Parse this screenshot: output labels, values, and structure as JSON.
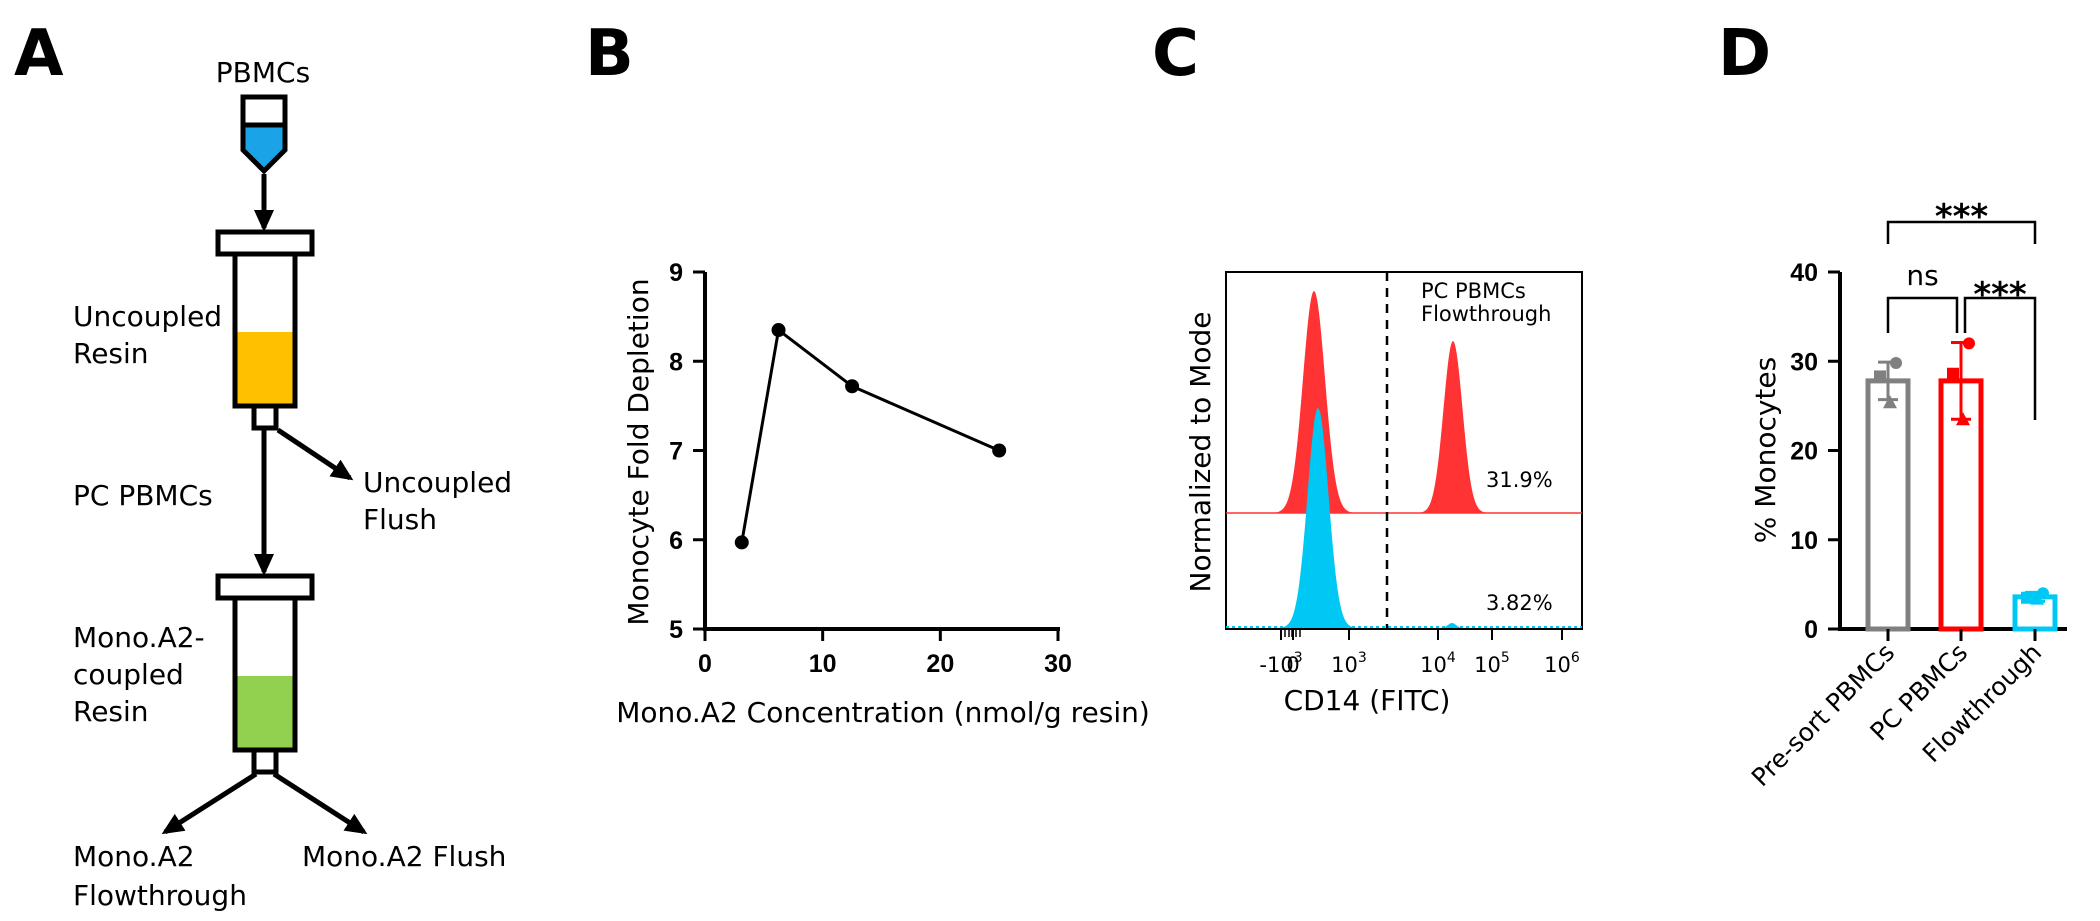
{
  "panel_labels": {
    "a": "A",
    "b": "B",
    "c": "C",
    "d": "D"
  },
  "schematic": {
    "input": "PBMCs",
    "column1_label_1": "Uncoupled",
    "column1_label_2": "Resin",
    "pc_label": "PC PBMCs",
    "flush1_label_1": "Uncoupled",
    "flush1_label_2": "Flush",
    "column2_label_1": "Mono.A2-",
    "column2_label_2": "coupled",
    "column2_label_3": "Resin",
    "out_left_1": "Mono.A2",
    "out_left_2": "Flowthrough",
    "out_right": "Mono.A2 Flush",
    "colors": {
      "tube_fill": "#1ba3e8",
      "resin1": "#ffc000",
      "resin2": "#92d050"
    }
  },
  "chart_data": [
    {
      "type": "line",
      "panel": "B",
      "x": [
        3.125,
        6.25,
        12.5,
        25
      ],
      "y": [
        5.97,
        8.35,
        7.72,
        7.0
      ],
      "xlim": [
        0,
        30
      ],
      "ylim": [
        5,
        9
      ],
      "xticks": [
        "0",
        "10",
        "20",
        "30"
      ],
      "yticks": [
        "5",
        "6",
        "7",
        "8",
        "9"
      ],
      "xlabel": "Mono.A2 Concentration (nmol/g resin)",
      "ylabel": "Monocyte Fold Depletion",
      "color": "#000000"
    },
    {
      "type": "area",
      "panel": "C",
      "xlabel": "CD14 (FITC)",
      "ylabel": "Normalized to Mode",
      "xticks": [
        {
          "base": "-10",
          "exp": "3"
        },
        {
          "base": "0",
          "exp": ""
        },
        {
          "base": "10",
          "exp": "3"
        },
        {
          "base": "10",
          "exp": "4"
        },
        {
          "base": "10",
          "exp": "5"
        },
        {
          "base": "10",
          "exp": "6"
        }
      ],
      "series": [
        {
          "name": "PC PBMCs",
          "color": "#ff3333",
          "percent_positive": "31.9%"
        },
        {
          "name": "Flowthrough",
          "color": "#00c8f5",
          "percent_positive": "3.82%"
        }
      ],
      "legend": "top-right"
    },
    {
      "type": "bar",
      "panel": "D",
      "categories": [
        "Pre-sort PBMCs",
        "PC PBMCs",
        "Flowthrough"
      ],
      "values": [
        27.8,
        27.8,
        3.6
      ],
      "errors": [
        2.1,
        4.3,
        0.5
      ],
      "points": [
        [
          29.8,
          28.3,
          25.4
        ],
        [
          32.0,
          28.6,
          23.5
        ],
        [
          4.0,
          3.5,
          3.4
        ]
      ],
      "colors": [
        "#808080",
        "#ff0000",
        "#00c8f5"
      ],
      "ylim": [
        0,
        40
      ],
      "yticks": [
        "0",
        "10",
        "20",
        "30",
        "40"
      ],
      "ylabel": "% Monocytes",
      "significance": [
        {
          "pair": [
            0,
            1
          ],
          "label": "ns"
        },
        {
          "pair": [
            1,
            2
          ],
          "label": "***"
        },
        {
          "pair": [
            0,
            2
          ],
          "label": "***"
        }
      ]
    }
  ]
}
